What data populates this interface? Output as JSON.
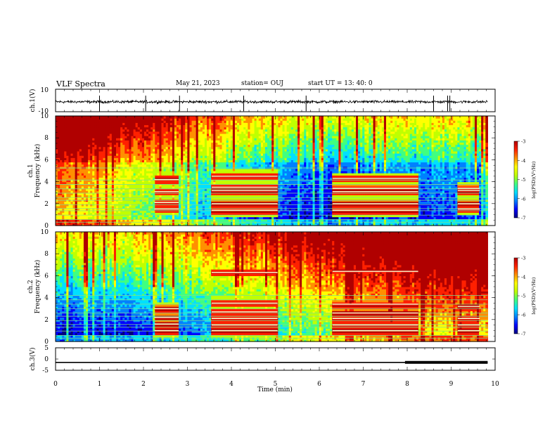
{
  "header": {
    "title": "VLF Spectra",
    "date": "May 21, 2023",
    "station": "station= OUJ",
    "start_ut": "start  UT  =   13: 40: 0"
  },
  "colormap": [
    "#00007f",
    "#0000ff",
    "#0080ff",
    "#00e0ff",
    "#40ff80",
    "#c0ff00",
    "#ffff00",
    "#ff9000",
    "#ff2000",
    "#b00000"
  ],
  "chart_data": [
    {
      "type": "line",
      "name": "ch1-waveform",
      "ylabel": "ch.1(V)",
      "ylim": [
        -10,
        10
      ],
      "yticks": [
        10,
        -10
      ],
      "baseline": -1.2,
      "spikes_min": [
        1.0,
        2.05,
        2.82,
        4.28,
        5.7,
        8.6,
        8.92,
        8.97
      ]
    },
    {
      "type": "heatmap",
      "name": "ch1-spectrogram",
      "ylabel": "Frequency (kHz)",
      "channel_label": "ch.1",
      "ylim": [
        0,
        10
      ],
      "yticks": [
        0,
        2,
        4,
        6,
        8,
        10
      ],
      "xlim": [
        0,
        10
      ],
      "xdata_end_min": 9.83,
      "colorbar": {
        "label": "log(PSD)(V²/Hz)",
        "range": [
          -7,
          -3
        ],
        "ticks": [
          -3,
          -4,
          -5,
          -6,
          -7
        ]
      },
      "background_profile": [
        [
          0,
          -3.8
        ],
        [
          1.5,
          -4.5
        ],
        [
          3.0,
          -5.2
        ],
        [
          4.5,
          -5.8
        ],
        [
          6.0,
          -6.3
        ],
        [
          8.0,
          -6.0
        ],
        [
          10.0,
          -5.9
        ]
      ],
      "spectral_lines_khz": [
        0.3,
        0.55,
        0.95,
        1.35,
        1.55,
        1.9,
        2.3,
        2.55,
        2.95,
        3.35,
        3.75,
        4.15,
        5.25
      ],
      "bursts": [
        {
          "t0": 2.25,
          "t1": 2.8,
          "freqs_khz": [
            1.5,
            2.1,
            3.1,
            4.2
          ]
        },
        {
          "t0": 3.55,
          "t1": 5.05,
          "freqs_khz": [
            1.4,
            2.0,
            3.2,
            3.5,
            4.5
          ]
        },
        {
          "t0": 6.3,
          "t1": 8.25,
          "freqs_khz": [
            1.4,
            2.0,
            3.1,
            3.4,
            4.3
          ]
        },
        {
          "t0": 9.15,
          "t1": 9.65,
          "freqs_khz": [
            1.5,
            2.0,
            3.2,
            3.4
          ]
        }
      ]
    },
    {
      "type": "heatmap",
      "name": "ch2-spectrogram",
      "ylabel": "Frequency (kHz)",
      "channel_label": "ch.2",
      "ylim": [
        0,
        10
      ],
      "yticks": [
        0,
        2,
        4,
        6,
        8,
        10
      ],
      "xlim": [
        0,
        10
      ],
      "xdata_end_min": 9.83,
      "colorbar": {
        "label": "log(PSD)(V²/Hz)",
        "range": [
          -7,
          -3
        ],
        "ticks": [
          -3,
          -4,
          -5,
          -6,
          -7
        ]
      },
      "background_profile": [
        [
          0,
          -5.6
        ],
        [
          2.0,
          -5.4
        ],
        [
          3.5,
          -5.0
        ],
        [
          5.0,
          -4.5
        ],
        [
          6.5,
          -4.0
        ],
        [
          8.0,
          -3.5
        ],
        [
          10.0,
          -3.3
        ]
      ],
      "spectral_lines_khz": [
        0.3,
        0.55,
        0.95,
        1.3,
        1.55,
        1.9,
        2.3,
        2.6,
        3.0,
        3.4,
        3.8,
        4.2
      ],
      "bursts": [
        {
          "t0": 2.25,
          "t1": 2.8,
          "freqs_khz": [
            1.0,
            1.6,
            2.2,
            3.0
          ]
        },
        {
          "t0": 3.55,
          "t1": 5.05,
          "freqs_khz": [
            1.0,
            1.5,
            2.1,
            2.7,
            3.5,
            6.3
          ]
        },
        {
          "t0": 6.3,
          "t1": 8.25,
          "freqs_khz": [
            1.0,
            1.5,
            2.1,
            2.6,
            3.4,
            6.4
          ]
        },
        {
          "t0": 9.15,
          "t1": 9.65,
          "freqs_khz": [
            1.0,
            1.5,
            2.1,
            3.2
          ]
        }
      ]
    },
    {
      "type": "line",
      "name": "ch3-trace",
      "ylabel": "ch.3(V)",
      "ylim": [
        -5,
        5
      ],
      "yticks": [
        5,
        0,
        -5
      ],
      "level_v": -1.5,
      "thick_from_min": 7.95,
      "xlabel": "Time (min)",
      "xlim": [
        0,
        10
      ],
      "xticks": [
        0,
        1,
        2,
        3,
        4,
        5,
        6,
        7,
        8,
        9,
        10
      ]
    }
  ]
}
